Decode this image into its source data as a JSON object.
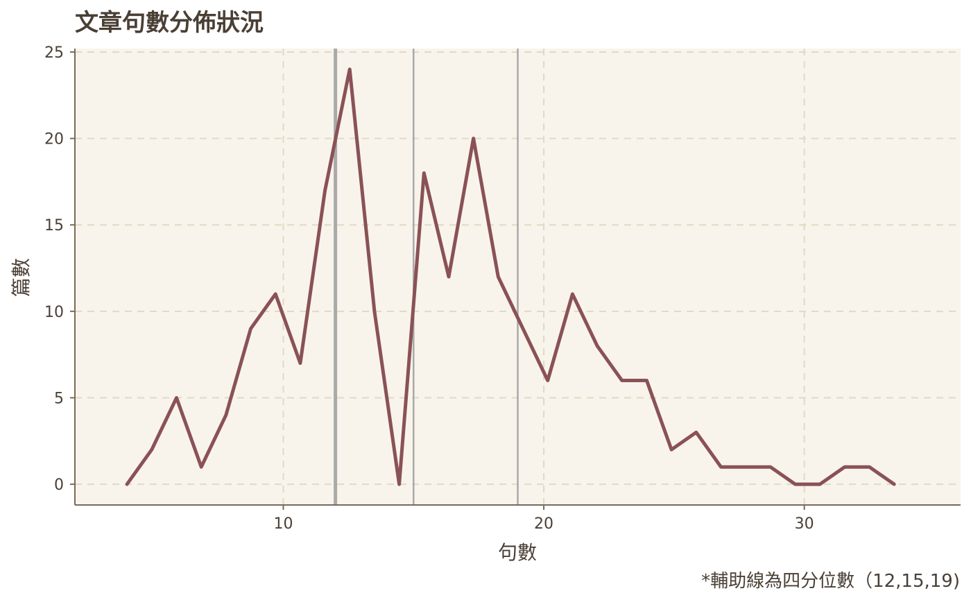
{
  "chart_data": {
    "type": "line",
    "title": "文章句數分佈狀況",
    "xlabel": "句數",
    "ylabel": "篇數",
    "caption": "*輔助線為四分位數（12,15,19)",
    "xlim": [
      2,
      36
    ],
    "ylim": [
      -1.2,
      25.2
    ],
    "xticks": [
      10,
      20,
      30
    ],
    "yticks": [
      0,
      5,
      10,
      15,
      20,
      25
    ],
    "grid": true,
    "quartiles": [
      12,
      15,
      19
    ],
    "series": [
      {
        "x": [
          4.0,
          4.95,
          5.9,
          6.85,
          7.8,
          8.75,
          9.7,
          10.65,
          11.6,
          12.55,
          13.5,
          14.45,
          15.4,
          16.35,
          17.3,
          18.25,
          19.2,
          20.15,
          21.1,
          22.05,
          23.0,
          23.95,
          24.9,
          25.85,
          26.8,
          27.75,
          28.7,
          29.65,
          30.6,
          31.55,
          32.5,
          33.45
        ],
        "y": [
          0,
          2,
          5,
          1,
          4,
          9,
          11,
          7,
          17,
          24,
          10,
          0,
          18,
          12,
          20,
          12,
          9,
          6,
          11,
          8,
          6,
          6,
          2,
          3,
          1,
          1,
          1,
          0,
          0,
          1,
          1,
          0
        ]
      }
    ],
    "colors": {
      "line": "#8a5256",
      "panel": "#f8f4ec",
      "grid": "#e0d9c4",
      "axis": "#7a6a57",
      "quartile": "#a9a9a9"
    }
  }
}
